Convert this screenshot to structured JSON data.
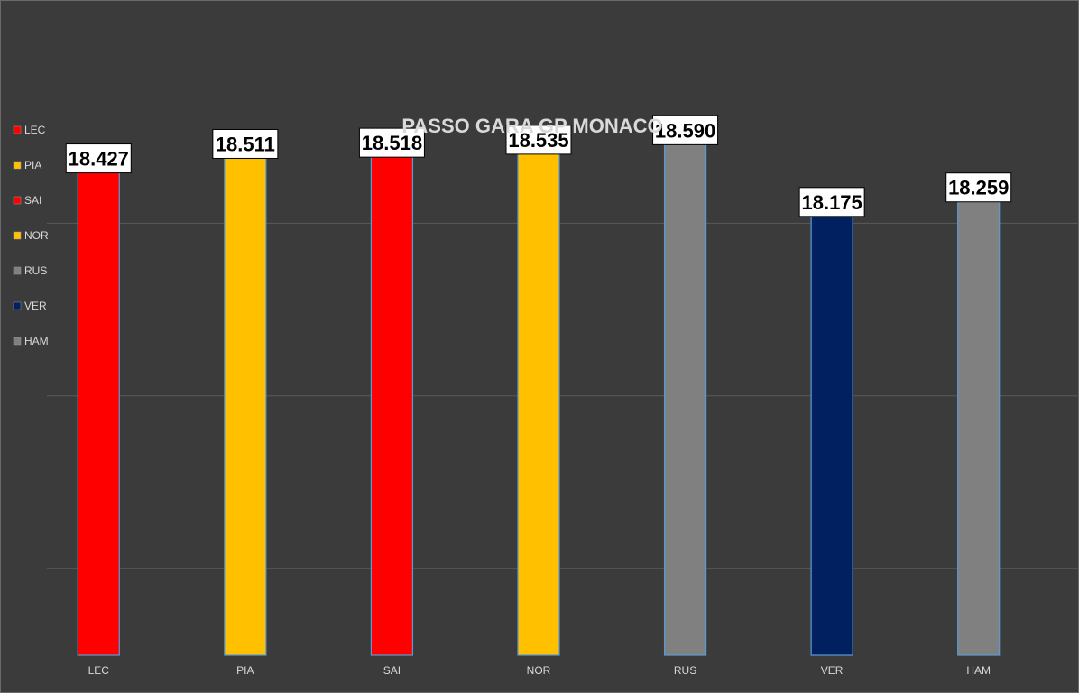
{
  "chart_data": {
    "type": "bar",
    "title": "PASSO GARA GP MONACO",
    "xlabel": "",
    "ylabel": "",
    "categories": [
      "LEC",
      "PIA",
      "SAI",
      "NOR",
      "RUS",
      "VER",
      "HAM"
    ],
    "values": [
      18.427,
      18.511,
      18.518,
      18.535,
      18.59,
      18.175,
      18.259
    ],
    "value_labels": [
      "18.427",
      "18.511",
      "18.518",
      "18.535",
      "18.590",
      "18.175",
      "18.259"
    ],
    "colors": [
      "#ff0000",
      "#ffc000",
      "#ff0000",
      "#ffc000",
      "#808080",
      "#002060",
      "#808080"
    ],
    "ylim": [
      15.5,
      18.9
    ],
    "grid": true,
    "legend_position": "left",
    "legend": [
      {
        "label": "LEC",
        "color": "#ff0000"
      },
      {
        "label": "PIA",
        "color": "#ffc000"
      },
      {
        "label": "SAI",
        "color": "#ff0000"
      },
      {
        "label": "NOR",
        "color": "#ffc000"
      },
      {
        "label": "RUS",
        "color": "#808080"
      },
      {
        "label": "VER",
        "color": "#002060"
      },
      {
        "label": "HAM",
        "color": "#808080"
      }
    ]
  },
  "style": {
    "background": "#3b3b3b",
    "gridline_color": "#5a5a5a",
    "title_color": "#d9d9d9",
    "tick_label_color": "#d9d9d9",
    "bar_outline_color": "#5b9bd5"
  }
}
